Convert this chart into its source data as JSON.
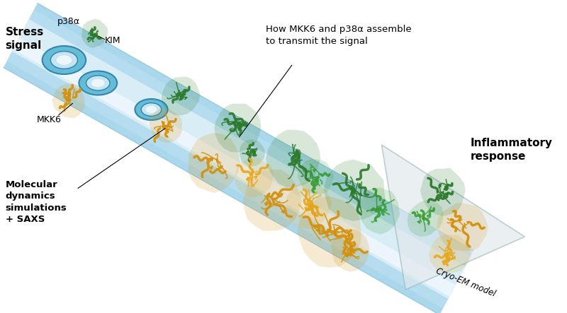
{
  "bg_color": "#ffffff",
  "tube_color_outer": "#8ecae6",
  "tube_color_inner": "#b8dff0",
  "tube_color_highlight": "#dff0f8",
  "ring_color_face": "#5bb8d4",
  "ring_color_edge": "#2a7fa8",
  "ring_color_inner": "#cce8f4",
  "protein_green": "#2d7a2d",
  "protein_yellow": "#d4900a",
  "protein_green2": "#3a9e3a",
  "protein_yellow2": "#e8a820",
  "text_color": "#000000",
  "cryo_fill": "#e0e8ec",
  "cryo_edge": "#a0b8c0",
  "label_stress": "Stress\nsignal",
  "label_how": "How MKK6 and p38α assemble\nto transmit the signal",
  "label_molecular": "Molecular\ndynamics\nsimulations\n+ SAXS",
  "label_inflammatory": "Inflammatory\nresponse",
  "label_cryo": "Cryo-EM model",
  "label_p38a": "p38α",
  "label_kim": "KIM",
  "label_mkk6": "MKK6"
}
